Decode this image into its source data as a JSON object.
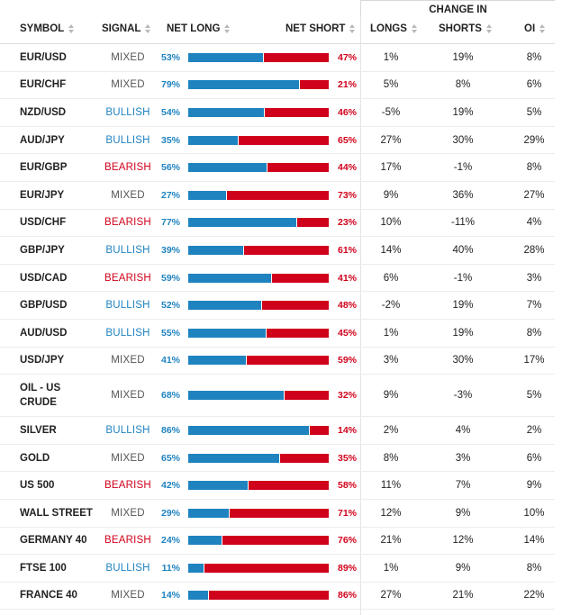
{
  "header": {
    "change_in": "CHANGE IN",
    "symbol": "SYMBOL",
    "signal": "SIGNAL",
    "net_long": "NET LONG",
    "net_short": "NET SHORT",
    "longs": "LONGS",
    "shorts": "SHORTS",
    "oi": "OI"
  },
  "colors": {
    "long": "#1f83c0",
    "short": "#d0021b",
    "mixed": "#555555"
  },
  "rows": [
    {
      "symbol": "EUR/USD",
      "signal": "MIXED",
      "net_long": "53%",
      "net_short": "47%",
      "longs": "1%",
      "shorts": "19%",
      "oi": "8%",
      "long_pct": 53
    },
    {
      "symbol": "EUR/CHF",
      "signal": "MIXED",
      "net_long": "79%",
      "net_short": "21%",
      "longs": "5%",
      "shorts": "8%",
      "oi": "6%",
      "long_pct": 79
    },
    {
      "symbol": "NZD/USD",
      "signal": "BULLISH",
      "net_long": "54%",
      "net_short": "46%",
      "longs": "-5%",
      "shorts": "19%",
      "oi": "5%",
      "long_pct": 54
    },
    {
      "symbol": "AUD/JPY",
      "signal": "BULLISH",
      "net_long": "35%",
      "net_short": "65%",
      "longs": "27%",
      "shorts": "30%",
      "oi": "29%",
      "long_pct": 35
    },
    {
      "symbol": "EUR/GBP",
      "signal": "BEARISH",
      "net_long": "56%",
      "net_short": "44%",
      "longs": "17%",
      "shorts": "-1%",
      "oi": "8%",
      "long_pct": 56
    },
    {
      "symbol": "EUR/JPY",
      "signal": "MIXED",
      "net_long": "27%",
      "net_short": "73%",
      "longs": "9%",
      "shorts": "36%",
      "oi": "27%",
      "long_pct": 27
    },
    {
      "symbol": "USD/CHF",
      "signal": "BEARISH",
      "net_long": "77%",
      "net_short": "23%",
      "longs": "10%",
      "shorts": "-11%",
      "oi": "4%",
      "long_pct": 77
    },
    {
      "symbol": "GBP/JPY",
      "signal": "BULLISH",
      "net_long": "39%",
      "net_short": "61%",
      "longs": "14%",
      "shorts": "40%",
      "oi": "28%",
      "long_pct": 39
    },
    {
      "symbol": "USD/CAD",
      "signal": "BEARISH",
      "net_long": "59%",
      "net_short": "41%",
      "longs": "6%",
      "shorts": "-1%",
      "oi": "3%",
      "long_pct": 59
    },
    {
      "symbol": "GBP/USD",
      "signal": "BULLISH",
      "net_long": "52%",
      "net_short": "48%",
      "longs": "-2%",
      "shorts": "19%",
      "oi": "7%",
      "long_pct": 52
    },
    {
      "symbol": "AUD/USD",
      "signal": "BULLISH",
      "net_long": "55%",
      "net_short": "45%",
      "longs": "1%",
      "shorts": "19%",
      "oi": "8%",
      "long_pct": 55
    },
    {
      "symbol": "USD/JPY",
      "signal": "MIXED",
      "net_long": "41%",
      "net_short": "59%",
      "longs": "3%",
      "shorts": "30%",
      "oi": "17%",
      "long_pct": 41
    },
    {
      "symbol": "OIL - US CRUDE",
      "signal": "MIXED",
      "net_long": "68%",
      "net_short": "32%",
      "longs": "9%",
      "shorts": "-3%",
      "oi": "5%",
      "long_pct": 68
    },
    {
      "symbol": "SILVER",
      "signal": "BULLISH",
      "net_long": "86%",
      "net_short": "14%",
      "longs": "2%",
      "shorts": "4%",
      "oi": "2%",
      "long_pct": 86
    },
    {
      "symbol": "GOLD",
      "signal": "MIXED",
      "net_long": "65%",
      "net_short": "35%",
      "longs": "8%",
      "shorts": "3%",
      "oi": "6%",
      "long_pct": 65
    },
    {
      "symbol": "US 500",
      "signal": "BEARISH",
      "net_long": "42%",
      "net_short": "58%",
      "longs": "11%",
      "shorts": "7%",
      "oi": "9%",
      "long_pct": 42
    },
    {
      "symbol": "WALL STREET",
      "signal": "MIXED",
      "net_long": "29%",
      "net_short": "71%",
      "longs": "12%",
      "shorts": "9%",
      "oi": "10%",
      "long_pct": 29
    },
    {
      "symbol": "GERMANY 40",
      "signal": "BEARISH",
      "net_long": "24%",
      "net_short": "76%",
      "longs": "21%",
      "shorts": "12%",
      "oi": "14%",
      "long_pct": 24
    },
    {
      "symbol": "FTSE 100",
      "signal": "BULLISH",
      "net_long": "11%",
      "net_short": "89%",
      "longs": "1%",
      "shorts": "9%",
      "oi": "8%",
      "long_pct": 11
    },
    {
      "symbol": "FRANCE 40",
      "signal": "MIXED",
      "net_long": "14%",
      "net_short": "86%",
      "longs": "27%",
      "shorts": "21%",
      "oi": "22%",
      "long_pct": 14
    }
  ]
}
